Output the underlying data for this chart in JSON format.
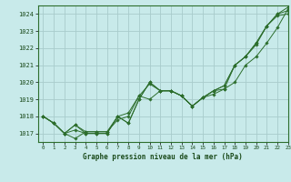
{
  "title": "Graphe pression niveau de la mer (hPa)",
  "bg_color": "#c8eaea",
  "line_color": "#2d6e2d",
  "grid_color": "#a8cccc",
  "xlim": [
    -0.5,
    23
  ],
  "ylim": [
    1016.5,
    1024.5
  ],
  "yticks": [
    1017,
    1018,
    1019,
    1020,
    1021,
    1022,
    1023,
    1024
  ],
  "xticks": [
    0,
    1,
    2,
    3,
    4,
    5,
    6,
    7,
    8,
    9,
    10,
    11,
    12,
    13,
    14,
    15,
    16,
    17,
    18,
    19,
    20,
    21,
    22,
    23
  ],
  "series": [
    [
      1018.0,
      1017.6,
      1017.0,
      1016.7,
      1017.1,
      1017.1,
      1017.1,
      1017.8,
      1018.0,
      1019.2,
      1019.9,
      1019.5,
      1019.5,
      1019.2,
      1018.6,
      1019.1,
      1019.3,
      1019.6,
      1021.0,
      1021.5,
      1022.2,
      1023.3,
      1023.9,
      1024.0
    ],
    [
      1018.0,
      1017.6,
      1017.0,
      1017.5,
      1017.1,
      1017.1,
      1017.1,
      1018.0,
      1018.2,
      1019.2,
      1019.0,
      1019.5,
      1019.5,
      1019.2,
      1018.6,
      1019.1,
      1019.5,
      1019.8,
      1021.0,
      1021.5,
      1022.3,
      1023.3,
      1024.0,
      1024.2
    ],
    [
      1018.0,
      1017.6,
      1017.0,
      1017.2,
      1017.0,
      1017.0,
      1017.0,
      1018.0,
      1017.6,
      1019.0,
      1020.0,
      1019.5,
      1019.5,
      1019.2,
      1018.6,
      1019.1,
      1019.5,
      1019.6,
      1020.0,
      1021.0,
      1021.5,
      1022.3,
      1023.2,
      1024.3
    ],
    [
      1018.0,
      1017.6,
      1017.0,
      1017.5,
      1017.0,
      1017.0,
      1017.0,
      1018.0,
      1017.6,
      1019.0,
      1020.0,
      1019.5,
      1019.5,
      1019.2,
      1018.6,
      1019.1,
      1019.5,
      1019.8,
      1021.0,
      1021.5,
      1022.3,
      1023.3,
      1024.0,
      1024.4
    ]
  ]
}
